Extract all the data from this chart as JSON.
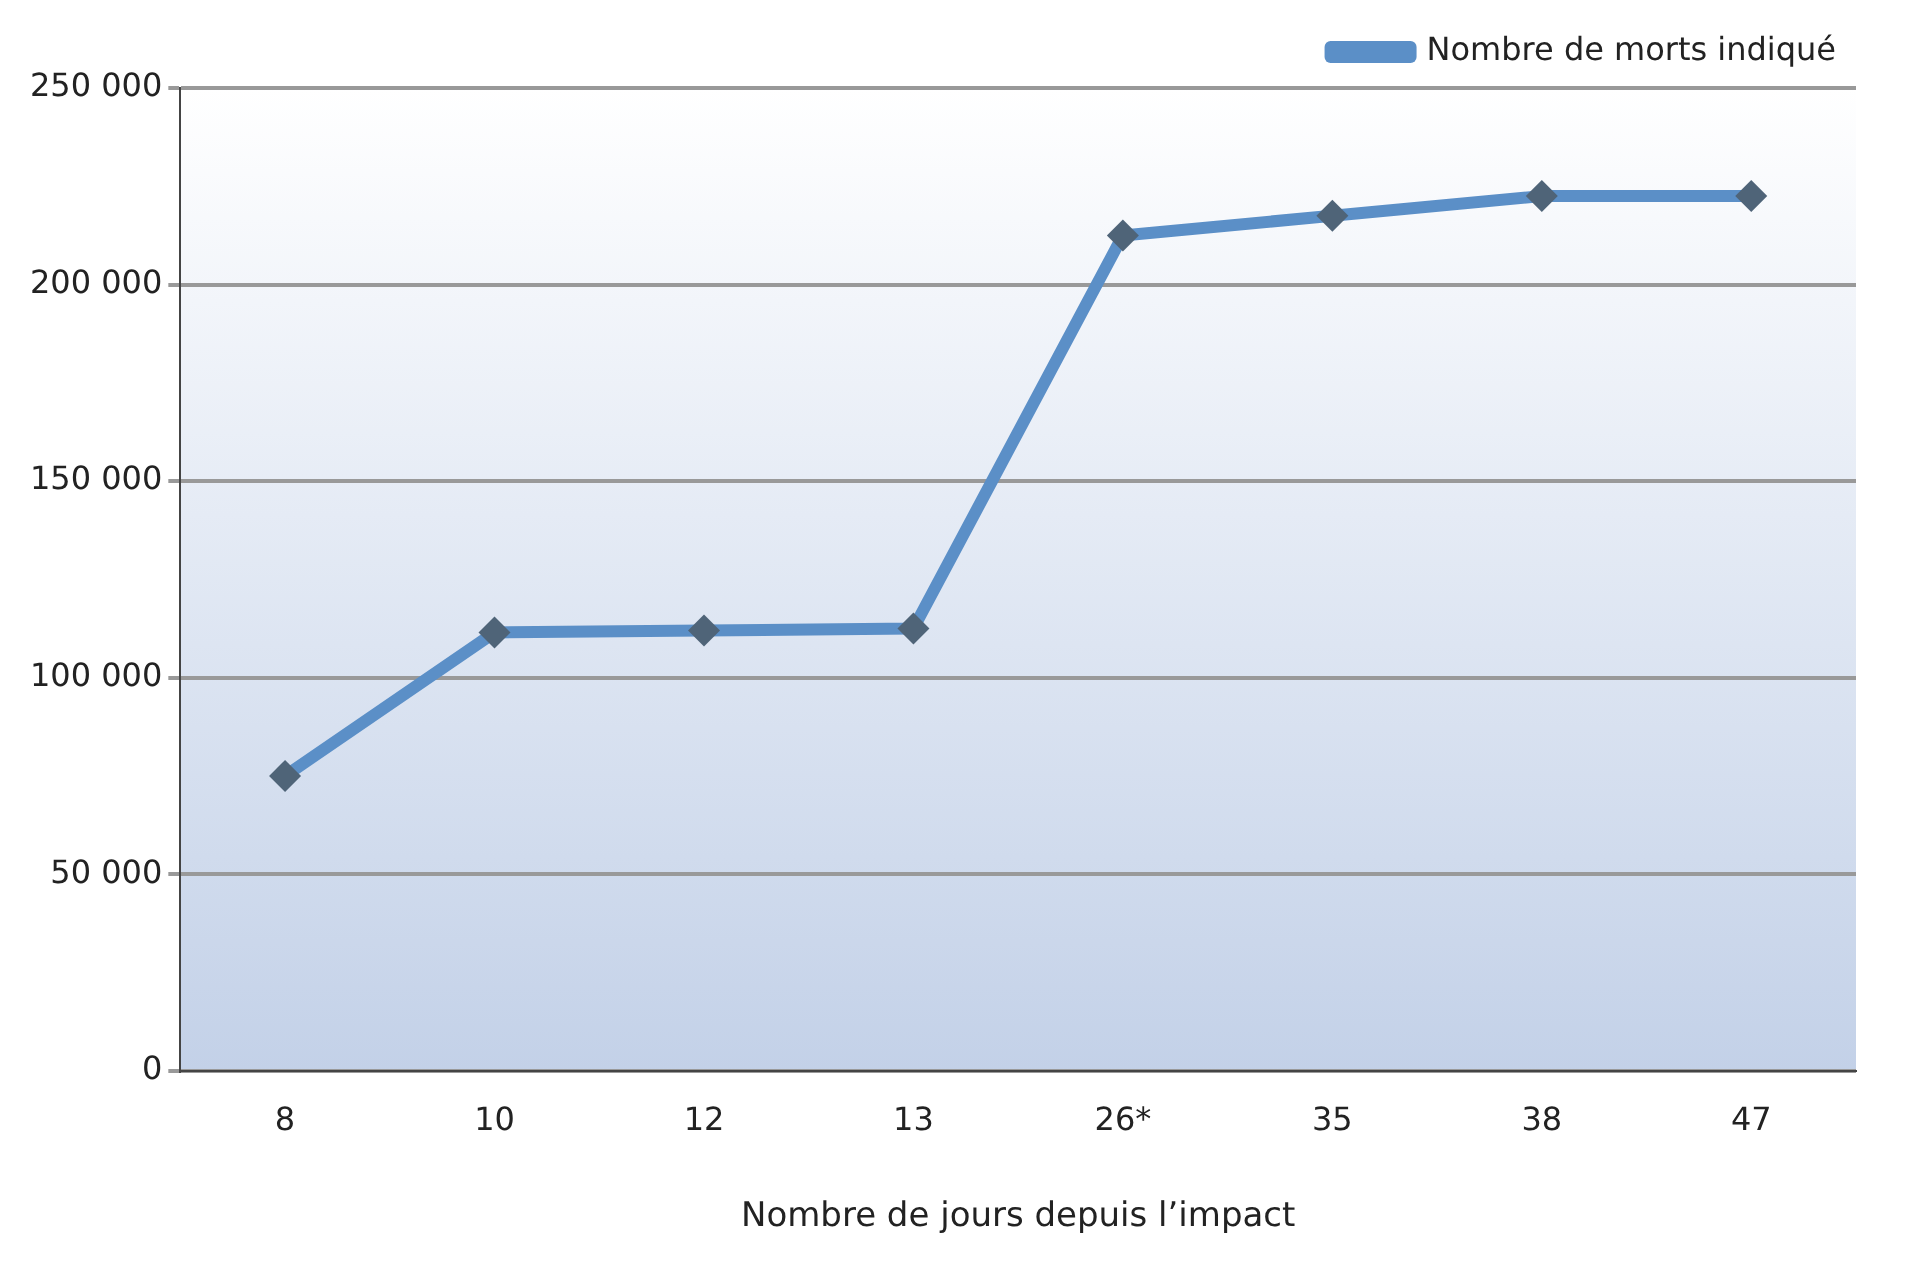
{
  "chart_data": {
    "type": "line",
    "xlabel": "Nombre de jours depuis l’impact",
    "categories": [
      "8",
      "10",
      "12",
      "13",
      "26*",
      "35",
      "38",
      "47"
    ],
    "series": [
      {
        "name": "Nombre de morts indiqué",
        "color": "#5b8fc7",
        "values": [
          75000,
          111500,
          112000,
          112500,
          212500,
          217500,
          222500,
          222500
        ]
      }
    ],
    "ylim": [
      0,
      250000
    ],
    "yticks": [
      {
        "value": 0,
        "label": "0"
      },
      {
        "value": 50000,
        "label": "50 000"
      },
      {
        "value": 100000,
        "label": "100 000"
      },
      {
        "value": 150000,
        "label": "150 000"
      },
      {
        "value": 200000,
        "label": "200 000"
      },
      {
        "value": 250000,
        "label": "250 000"
      }
    ],
    "grid": "y",
    "legend": "top right",
    "marker": "diamond",
    "line_style": "solid"
  }
}
